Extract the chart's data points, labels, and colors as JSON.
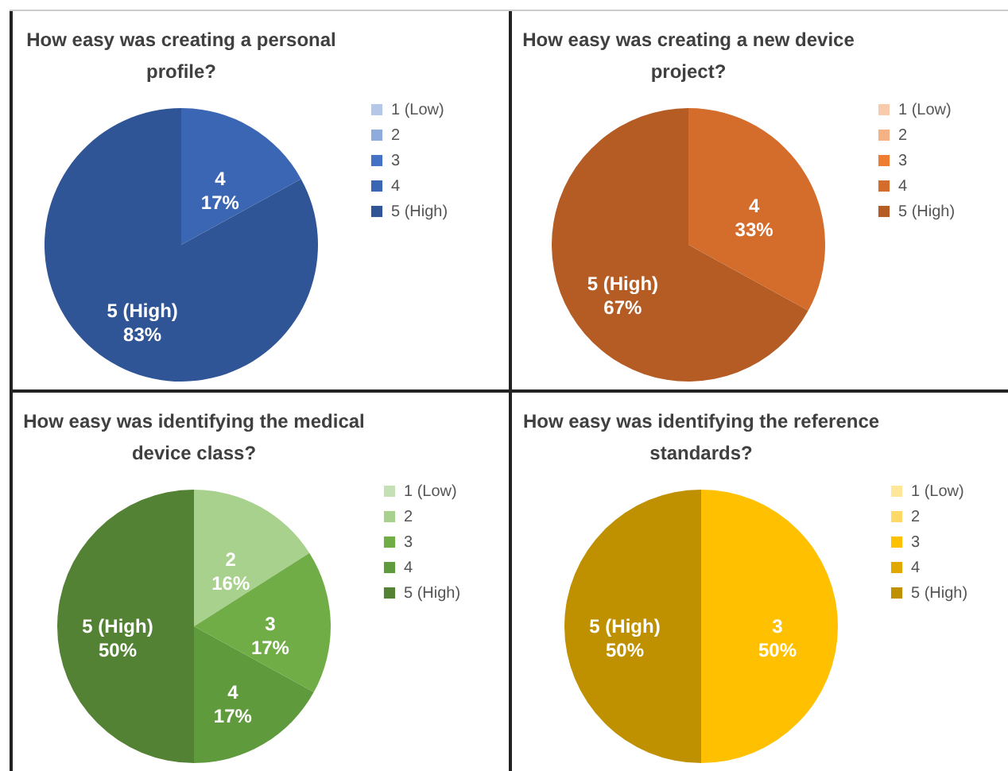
{
  "chart_data": [
    {
      "type": "pie",
      "title": "How easy was creating a personal profile?",
      "categories": [
        "1 (Low)",
        "2",
        "3",
        "4",
        "5 (High)"
      ],
      "values": [
        0,
        0,
        0,
        17,
        83
      ],
      "colors": [
        "#b4c7e7",
        "#8faadc",
        "#4472c4",
        "#3a66b3",
        "#2f5597"
      ],
      "value_labels": [
        null,
        null,
        null,
        "4\n17%",
        "5 (High)\n83%"
      ],
      "legend": "right"
    },
    {
      "type": "pie",
      "title": "How easy was creating a new device project?",
      "categories": [
        "1 (Low)",
        "2",
        "3",
        "4",
        "5 (High)"
      ],
      "values": [
        0,
        0,
        0,
        33,
        67
      ],
      "colors": [
        "#f8cbad",
        "#f4b183",
        "#ed7d31",
        "#d46c2c",
        "#b45c23"
      ],
      "value_labels": [
        null,
        null,
        null,
        "4\n33%",
        "5 (High)\n67%"
      ],
      "legend": "right"
    },
    {
      "type": "pie",
      "title": "How easy was identifying the medical device class?",
      "categories": [
        "1 (Low)",
        "2",
        "3",
        "4",
        "5 (High)"
      ],
      "values": [
        0,
        16,
        17,
        17,
        50
      ],
      "colors": [
        "#c5e0b4",
        "#a9d18e",
        "#70ad47",
        "#5f9a3c",
        "#548235"
      ],
      "value_labels": [
        null,
        "2\n16%",
        "3\n17%",
        "4\n17%",
        "5 (High)\n50%"
      ],
      "legend": "right"
    },
    {
      "type": "pie",
      "title": "How easy was identifying the reference standards?",
      "categories": [
        "1 (Low)",
        "2",
        "3",
        "4",
        "5 (High)"
      ],
      "values": [
        0,
        0,
        50,
        0,
        50
      ],
      "colors": [
        "#ffe699",
        "#ffd966",
        "#ffc000",
        "#e0a800",
        "#bf9000"
      ],
      "value_labels": [
        null,
        null,
        "3\n50%",
        null,
        "5 (High)\n50%"
      ],
      "legend": "right"
    }
  ]
}
